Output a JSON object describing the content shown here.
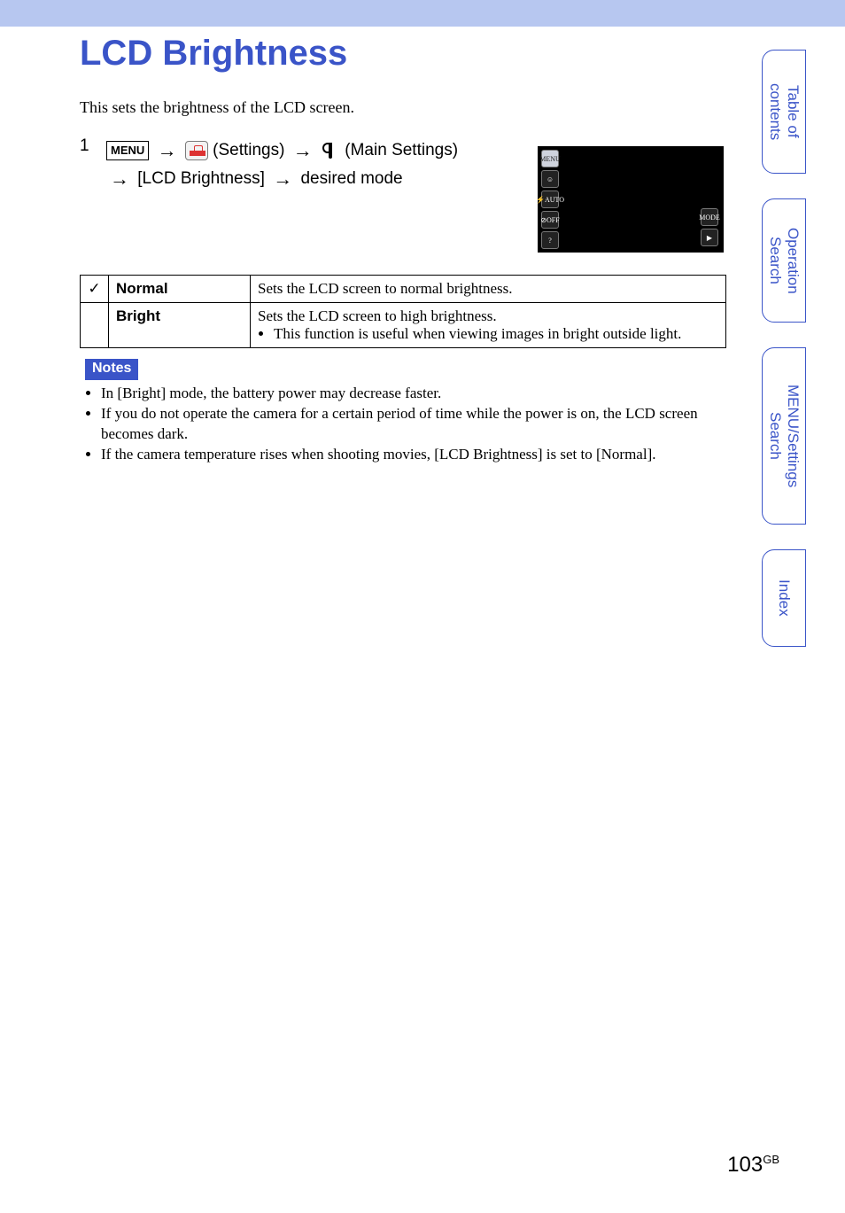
{
  "colors": {
    "topbar_bg": "#b7c7f0",
    "heading": "#3a54c8",
    "notes_bg": "#3a54c8",
    "tab_border": "#3a54c8",
    "tab_text": "#3a54c8",
    "text": "#000000",
    "page_bg": "#ffffff"
  },
  "heading": "LCD Brightness",
  "intro": "This sets the brightness of the LCD screen.",
  "step": {
    "num": "1",
    "menu_label": "MENU",
    "settings_label": "(Settings)",
    "main_settings_label": "(Main Settings)",
    "line2": "[LCD Brightness]",
    "line2_tail": "desired mode"
  },
  "options_table": {
    "rows": [
      {
        "check": "✓",
        "name": "Normal",
        "desc": "Sets the LCD screen to normal brightness.",
        "bullets": []
      },
      {
        "check": "",
        "name": "Bright",
        "desc": "Sets the LCD screen to high brightness.",
        "bullets": [
          "This function is useful when viewing images in bright outside light."
        ]
      }
    ]
  },
  "notes": {
    "label": "Notes",
    "items": [
      "In [Bright] mode, the battery power may decrease faster.",
      "If you do not operate the camera for a certain period of time while the power is on, the LCD screen becomes dark.",
      "If the camera temperature rises when shooting movies, [LCD Brightness] is set to [Normal]."
    ]
  },
  "side_tabs": [
    "Table of\ncontents",
    "Operation\nSearch",
    "MENU/Settings\nSearch",
    "Index"
  ],
  "screenshot_icons": {
    "left": [
      "MENU",
      "☺",
      "⚡AUTO",
      "⊘OFF",
      "?"
    ],
    "right": [
      "MODE",
      "▶"
    ]
  },
  "page_number": "103",
  "page_suffix": "GB"
}
